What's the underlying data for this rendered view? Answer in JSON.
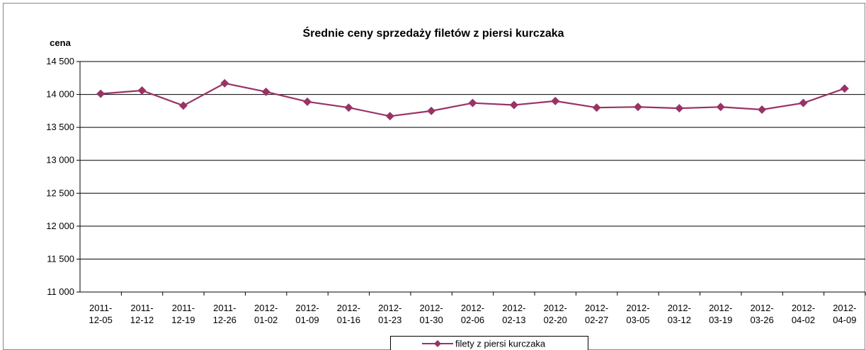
{
  "chart_data": {
    "type": "line",
    "title": "Średnie ceny sprzedaży filetów z piersi kurczaka",
    "y_label": "cena",
    "categories": [
      "2011-12-05",
      "2011-12-12",
      "2011-12-19",
      "2011-12-26",
      "2012-01-02",
      "2012-01-09",
      "2012-01-16",
      "2012-01-23",
      "2012-01-30",
      "2012-02-06",
      "2012-02-13",
      "2012-02-20",
      "2012-02-27",
      "2012-03-05",
      "2012-03-12",
      "2012-03-19",
      "2012-03-26",
      "2012-04-02",
      "2012-04-09"
    ],
    "series": [
      {
        "name": "filety z piersi kurczaka",
        "color": "#993366",
        "values": [
          14010,
          14060,
          13830,
          14170,
          14040,
          13890,
          13800,
          13670,
          13750,
          13870,
          13840,
          13900,
          13800,
          13810,
          13790,
          13810,
          13770,
          13870,
          14090
        ]
      }
    ],
    "ylim": [
      11000,
      14500
    ],
    "yticks": [
      {
        "value": 11000,
        "label": "11 000"
      },
      {
        "value": 11500,
        "label": "11 500"
      },
      {
        "value": 12000,
        "label": "12 000"
      },
      {
        "value": 12500,
        "label": "12 500"
      },
      {
        "value": 13000,
        "label": "13 000"
      },
      {
        "value": 13500,
        "label": "13 500"
      },
      {
        "value": 14000,
        "label": "14 000"
      },
      {
        "value": 14500,
        "label": "14 500"
      }
    ],
    "grid": true,
    "legend": "bottom"
  }
}
